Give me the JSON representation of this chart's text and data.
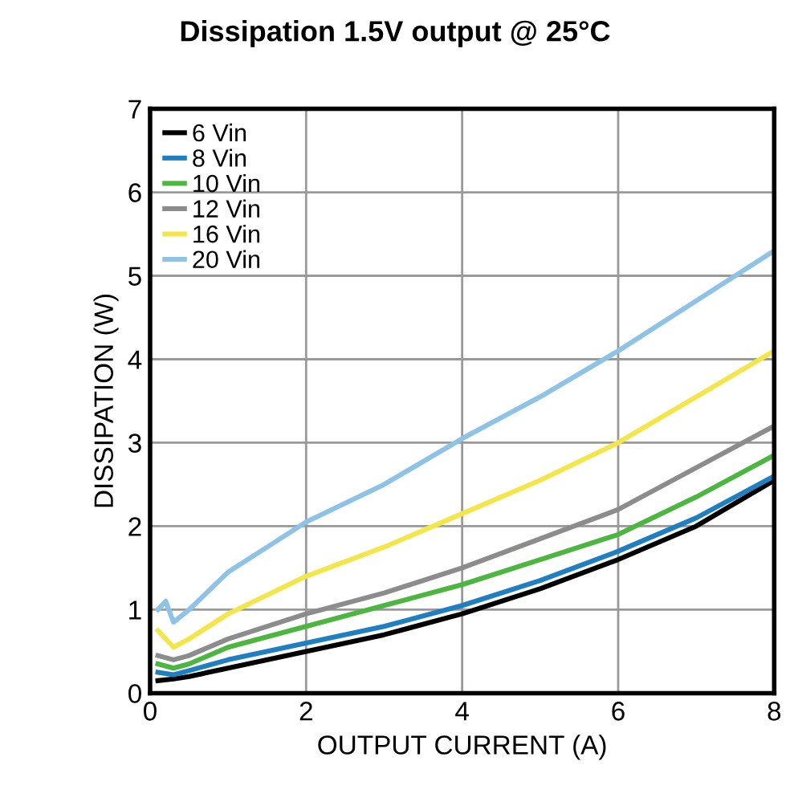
{
  "chart_data": {
    "type": "line",
    "title": "Dissipation 1.5V output @ 25°C",
    "xlabel": "OUTPUT CURRENT (A)",
    "ylabel": "DISSIPATION (W)",
    "xlim": [
      0,
      8
    ],
    "ylim": [
      0,
      7
    ],
    "xticks": [
      0,
      2,
      4,
      6,
      8
    ],
    "yticks": [
      0,
      1,
      2,
      3,
      4,
      5,
      6,
      7
    ],
    "grid": true,
    "legend": "top left",
    "series": [
      {
        "name": "6 Vin",
        "color": "#000000",
        "x": [
          0.1,
          0.3,
          0.5,
          1,
          2,
          3,
          4,
          5,
          6,
          7,
          8
        ],
        "values": [
          0.15,
          0.17,
          0.2,
          0.3,
          0.5,
          0.7,
          0.95,
          1.25,
          1.6,
          2.0,
          2.55
        ]
      },
      {
        "name": "8 Vin",
        "color": "#1f7fc0",
        "x": [
          0.1,
          0.3,
          0.5,
          1,
          2,
          3,
          4,
          5,
          6,
          7,
          8
        ],
        "values": [
          0.25,
          0.22,
          0.27,
          0.4,
          0.6,
          0.8,
          1.05,
          1.35,
          1.7,
          2.1,
          2.6
        ]
      },
      {
        "name": "10 Vin",
        "color": "#4cb640",
        "x": [
          0.1,
          0.3,
          0.5,
          1,
          2,
          3,
          4,
          5,
          6,
          7,
          8
        ],
        "values": [
          0.35,
          0.3,
          0.35,
          0.55,
          0.8,
          1.05,
          1.3,
          1.6,
          1.9,
          2.35,
          2.85
        ]
      },
      {
        "name": "12 Vin",
        "color": "#8c8c8c",
        "x": [
          0.1,
          0.3,
          0.5,
          1,
          2,
          3,
          4,
          5,
          6,
          7,
          8
        ],
        "values": [
          0.45,
          0.4,
          0.45,
          0.65,
          0.95,
          1.2,
          1.5,
          1.85,
          2.2,
          2.7,
          3.2
        ]
      },
      {
        "name": "16 Vin",
        "color": "#f2e64a",
        "x": [
          0.1,
          0.3,
          0.5,
          1,
          2,
          3,
          4,
          5,
          6,
          7,
          8
        ],
        "values": [
          0.75,
          0.55,
          0.65,
          0.95,
          1.4,
          1.75,
          2.15,
          2.55,
          3.0,
          3.55,
          4.1
        ]
      },
      {
        "name": "20 Vin",
        "color": "#8fc3e6",
        "x": [
          0.1,
          0.2,
          0.3,
          0.5,
          1,
          1.5,
          2,
          3,
          4,
          5,
          6,
          7,
          8
        ],
        "values": [
          1.0,
          1.1,
          0.85,
          1.0,
          1.45,
          1.75,
          2.05,
          2.5,
          3.05,
          3.55,
          4.1,
          4.7,
          5.3
        ]
      }
    ]
  }
}
